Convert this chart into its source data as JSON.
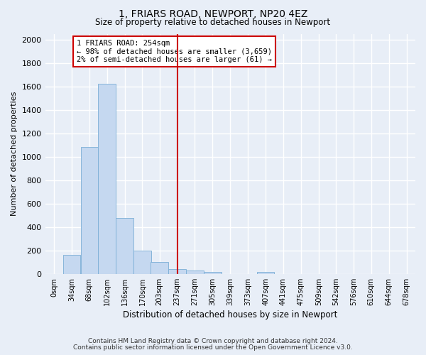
{
  "title": "1, FRIARS ROAD, NEWPORT, NP20 4EZ",
  "subtitle": "Size of property relative to detached houses in Newport",
  "xlabel": "Distribution of detached houses by size in Newport",
  "ylabel": "Number of detached properties",
  "bar_color": "#c5d8f0",
  "bar_edge_color": "#7aaed6",
  "background_color": "#e8eef7",
  "grid_color": "#ffffff",
  "categories": [
    "0sqm",
    "34sqm",
    "68sqm",
    "102sqm",
    "136sqm",
    "170sqm",
    "203sqm",
    "237sqm",
    "271sqm",
    "305sqm",
    "339sqm",
    "373sqm",
    "407sqm",
    "441sqm",
    "475sqm",
    "509sqm",
    "542sqm",
    "576sqm",
    "610sqm",
    "644sqm",
    "678sqm"
  ],
  "bar_heights": [
    0,
    163,
    1083,
    1622,
    480,
    200,
    102,
    43,
    27,
    18,
    0,
    0,
    17,
    0,
    0,
    0,
    0,
    0,
    0,
    0,
    0
  ],
  "bin_edges": [
    0,
    34,
    68,
    102,
    136,
    170,
    203,
    237,
    271,
    305,
    339,
    373,
    407,
    441,
    475,
    509,
    542,
    576,
    610,
    644,
    678
  ],
  "bin_width": 34,
  "ylim": [
    0,
    2050
  ],
  "yticks": [
    0,
    200,
    400,
    600,
    800,
    1000,
    1200,
    1400,
    1600,
    1800,
    2000
  ],
  "xlim_max": 712,
  "property_size": 254,
  "vline_color": "#cc0000",
  "annotation_text": "1 FRIARS ROAD: 254sqm\n← 98% of detached houses are smaller (3,659)\n2% of semi-detached houses are larger (61) →",
  "annotation_box_color": "#ffffff",
  "annotation_box_edge": "#cc0000",
  "footer_line1": "Contains HM Land Registry data © Crown copyright and database right 2024.",
  "footer_line2": "Contains public sector information licensed under the Open Government Licence v3.0."
}
